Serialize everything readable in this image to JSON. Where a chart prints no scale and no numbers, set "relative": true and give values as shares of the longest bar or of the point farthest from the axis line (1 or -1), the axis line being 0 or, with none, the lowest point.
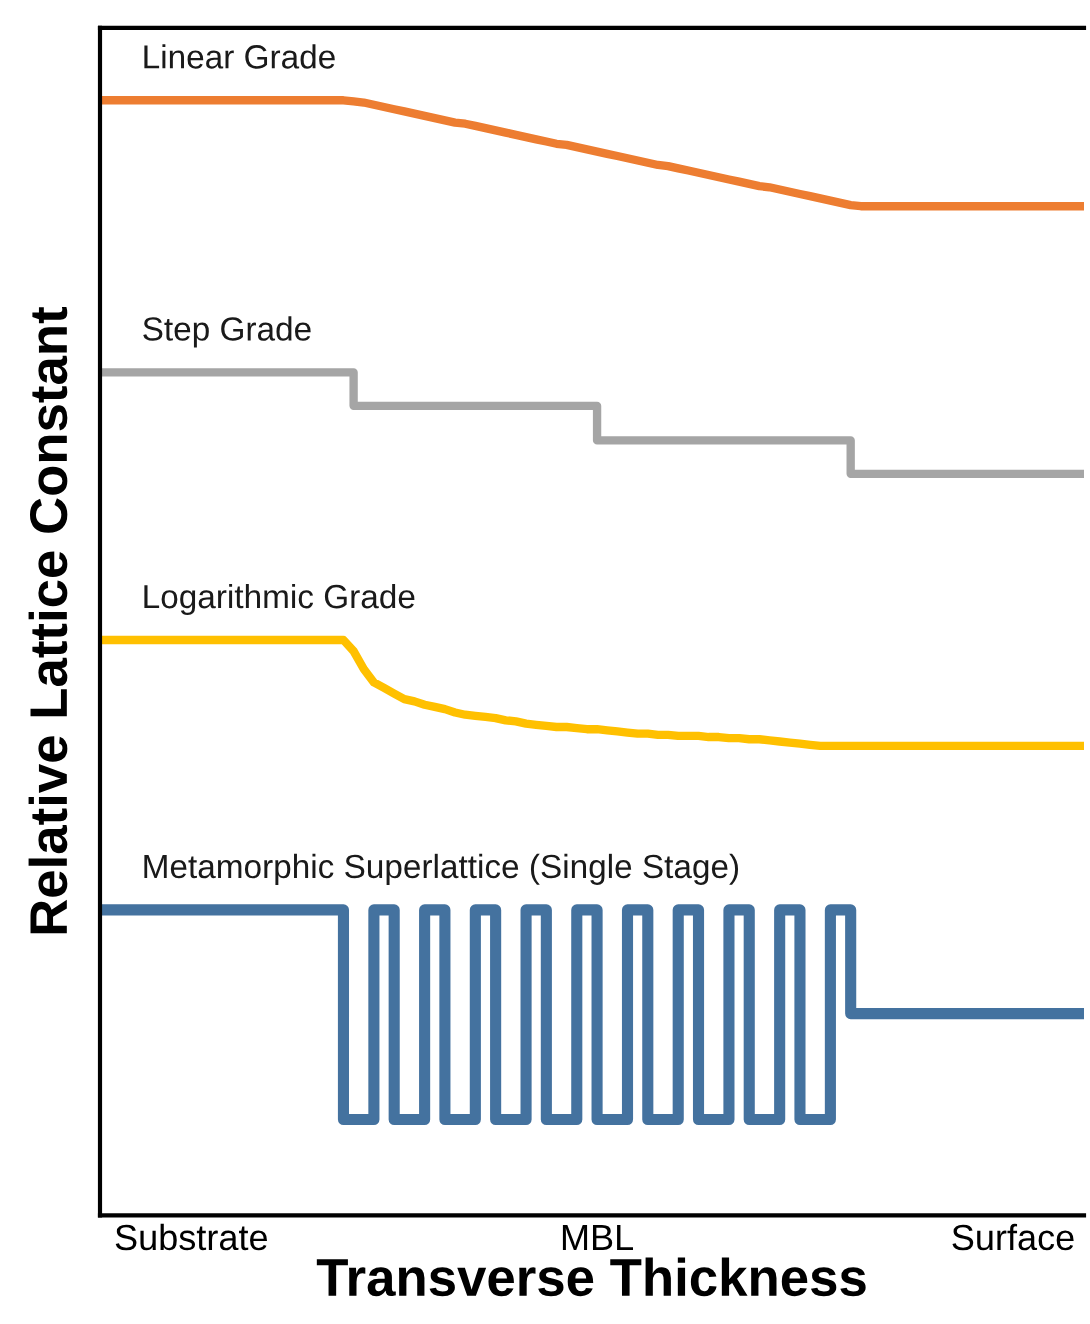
{
  "chart_data": {
    "type": "line",
    "relative": true,
    "xlabel": "Transverse Thickness",
    "ylabel": "Relative Lattice Constant",
    "categories": [
      null,
      null,
      null,
      null,
      null,
      null,
      null,
      null,
      null,
      "Substrate",
      null,
      null,
      null,
      null,
      null,
      null,
      null,
      null,
      null,
      null,
      null,
      null,
      null,
      null,
      null,
      null,
      null,
      null,
      null,
      null,
      null,
      null,
      null,
      null,
      null,
      null,
      null,
      null,
      null,
      null,
      null,
      null,
      null,
      null,
      null,
      null,
      null,
      null,
      null,
      "MBL",
      null,
      null,
      null,
      null,
      null,
      null,
      null,
      null,
      null,
      null,
      null,
      null,
      null,
      null,
      null,
      null,
      null,
      null,
      null,
      null,
      null,
      null,
      null,
      null,
      null,
      null,
      null,
      null,
      null,
      null,
      null,
      null,
      null,
      null,
      null,
      null,
      null,
      null,
      null,
      null,
      "Surface",
      null,
      null,
      null,
      null,
      null,
      null,
      null
    ],
    "tick_labels": "x",
    "grid": false,
    "legend": false,
    "marker": "none",
    "line_style": "solid",
    "series": [
      {
        "name": "Linear Grade",
        "color": "#ed7d31",
        "values": [
          1.0,
          1.0,
          1.0,
          1.0,
          1.0,
          1.0,
          1.0,
          1.0,
          1.0,
          1.0,
          1.0,
          1.0,
          1.0,
          1.0,
          1.0,
          1.0,
          1.0,
          1.0,
          1.0,
          1.0,
          1.0,
          1.0,
          1.0,
          1.0,
          1.0,
          0.999,
          0.998,
          0.996,
          0.994,
          0.992,
          0.99,
          0.988,
          0.986,
          0.984,
          0.982,
          0.98,
          0.979,
          0.977,
          0.975,
          0.973,
          0.971,
          0.969,
          0.967,
          0.965,
          0.963,
          0.961,
          0.96,
          0.958,
          0.956,
          0.954,
          0.952,
          0.95,
          0.948,
          0.946,
          0.944,
          0.942,
          0.941,
          0.939,
          0.937,
          0.935,
          0.933,
          0.931,
          0.929,
          0.927,
          0.925,
          0.923,
          0.922,
          0.92,
          0.918,
          0.916,
          0.914,
          0.912,
          0.91,
          0.908,
          0.906,
          0.905,
          0.905,
          0.905,
          0.905,
          0.905,
          0.905,
          0.905,
          0.905,
          0.905,
          0.905,
          0.905,
          0.905,
          0.905,
          0.905,
          0.905,
          0.905,
          0.905,
          0.905,
          0.905,
          0.905,
          0.905,
          0.905,
          0.905
        ]
      },
      {
        "name": "Step Grade",
        "color": "#a5a5a5",
        "type": "step",
        "values": [
          0.756,
          0.756,
          0.756,
          0.756,
          0.756,
          0.756,
          0.756,
          0.756,
          0.756,
          0.756,
          0.756,
          0.756,
          0.756,
          0.756,
          0.756,
          0.756,
          0.756,
          0.756,
          0.756,
          0.756,
          0.756,
          0.756,
          0.756,
          0.756,
          0.756,
          0.726,
          0.726,
          0.726,
          0.726,
          0.726,
          0.726,
          0.726,
          0.726,
          0.726,
          0.726,
          0.726,
          0.726,
          0.726,
          0.726,
          0.726,
          0.726,
          0.726,
          0.726,
          0.726,
          0.726,
          0.726,
          0.726,
          0.726,
          0.726,
          0.695,
          0.695,
          0.695,
          0.695,
          0.695,
          0.695,
          0.695,
          0.695,
          0.695,
          0.695,
          0.695,
          0.695,
          0.695,
          0.695,
          0.695,
          0.695,
          0.695,
          0.695,
          0.695,
          0.695,
          0.695,
          0.695,
          0.695,
          0.695,
          0.695,
          0.665,
          0.665,
          0.665,
          0.665,
          0.665,
          0.665,
          0.665,
          0.665,
          0.665,
          0.665,
          0.665,
          0.665,
          0.665,
          0.665,
          0.665,
          0.665,
          0.665,
          0.665,
          0.665,
          0.665,
          0.665,
          0.665,
          0.665,
          0.665
        ]
      },
      {
        "name": "Logarithmic Grade",
        "color": "#ffc000",
        "values": [
          0.516,
          0.516,
          0.516,
          0.516,
          0.516,
          0.516,
          0.516,
          0.516,
          0.516,
          0.516,
          0.516,
          0.516,
          0.516,
          0.516,
          0.516,
          0.516,
          0.516,
          0.516,
          0.516,
          0.516,
          0.516,
          0.516,
          0.516,
          0.516,
          0.516,
          0.506,
          0.49,
          0.478,
          0.473,
          0.468,
          0.463,
          0.461,
          0.458,
          0.456,
          0.454,
          0.451,
          0.449,
          0.448,
          0.447,
          0.446,
          0.444,
          0.443,
          0.441,
          0.44,
          0.439,
          0.438,
          0.438,
          0.437,
          0.436,
          0.436,
          0.435,
          0.434,
          0.433,
          0.432,
          0.432,
          0.431,
          0.431,
          0.43,
          0.43,
          0.43,
          0.429,
          0.429,
          0.428,
          0.428,
          0.427,
          0.427,
          0.426,
          0.425,
          0.424,
          0.423,
          0.422,
          0.421,
          0.421,
          0.421,
          0.421,
          0.421,
          0.421,
          0.421,
          0.421,
          0.421,
          0.421,
          0.421,
          0.421,
          0.421,
          0.421,
          0.421,
          0.421,
          0.421,
          0.421,
          0.421,
          0.421,
          0.421,
          0.421,
          0.421,
          0.421,
          0.421,
          0.421,
          0.421
        ]
      },
      {
        "name": "Metamorphic Superlattice (Single Stage)",
        "color": "#44729f",
        "type": "step",
        "values": [
          0.274,
          0.274,
          0.274,
          0.274,
          0.274,
          0.274,
          0.274,
          0.274,
          0.274,
          0.274,
          0.274,
          0.274,
          0.274,
          0.274,
          0.274,
          0.274,
          0.274,
          0.274,
          0.274,
          0.274,
          0.274,
          0.274,
          0.274,
          0.274,
          0.086,
          0.086,
          0.086,
          0.274,
          0.274,
          0.086,
          0.086,
          0.086,
          0.274,
          0.274,
          0.086,
          0.086,
          0.086,
          0.274,
          0.274,
          0.086,
          0.086,
          0.086,
          0.274,
          0.274,
          0.086,
          0.086,
          0.086,
          0.274,
          0.274,
          0.086,
          0.086,
          0.086,
          0.274,
          0.274,
          0.086,
          0.086,
          0.086,
          0.274,
          0.274,
          0.086,
          0.086,
          0.086,
          0.274,
          0.274,
          0.086,
          0.086,
          0.086,
          0.274,
          0.274,
          0.086,
          0.086,
          0.086,
          0.274,
          0.274,
          0.181,
          0.181,
          0.181,
          0.181,
          0.181,
          0.181,
          0.181,
          0.181,
          0.181,
          0.181,
          0.181,
          0.181,
          0.181,
          0.181,
          0.181,
          0.181,
          0.181,
          0.181,
          0.181,
          0.181,
          0.181,
          0.181,
          0.181,
          0.181
        ]
      }
    ]
  }
}
